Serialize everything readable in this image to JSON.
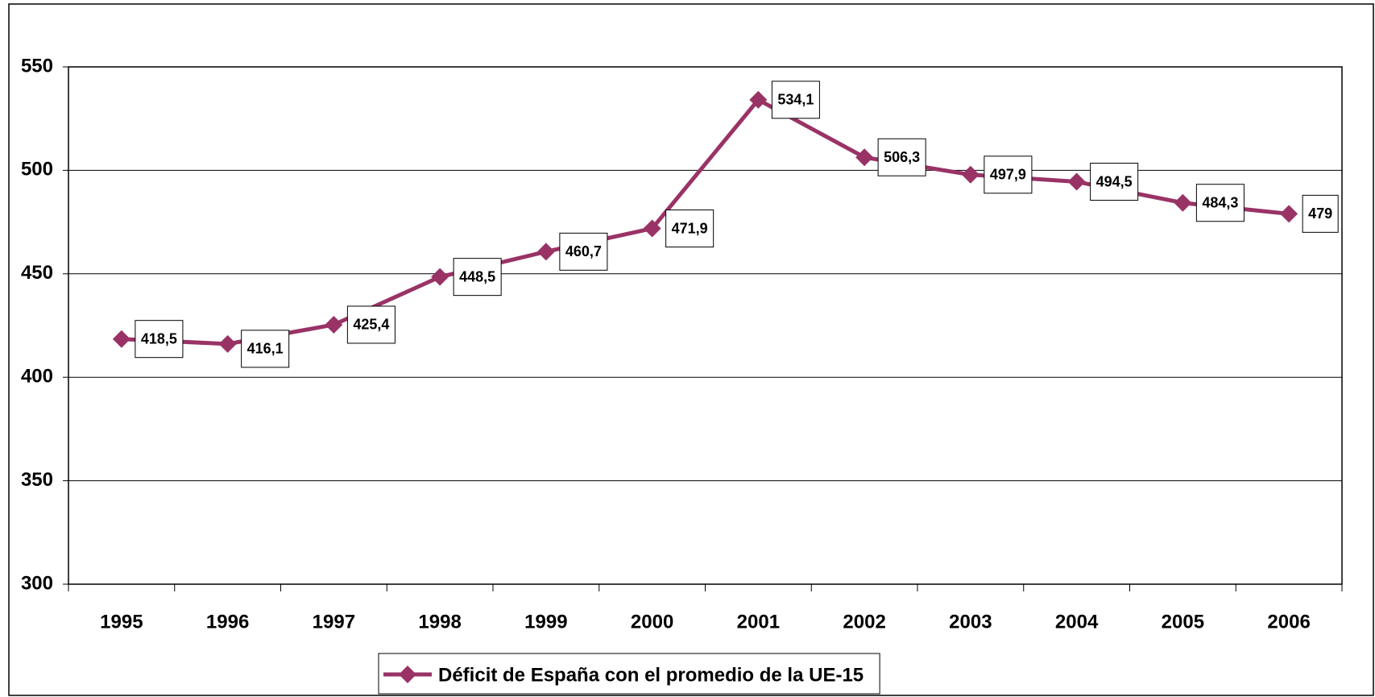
{
  "chart_data": {
    "type": "line",
    "categories": [
      "1995",
      "1996",
      "1997",
      "1998",
      "1999",
      "2000",
      "2001",
      "2002",
      "2003",
      "2004",
      "2005",
      "2006"
    ],
    "series": [
      {
        "name": "Déficit de España con el promedio de la UE-15",
        "color": "#993366",
        "values": [
          418.5,
          416.1,
          425.4,
          448.5,
          460.7,
          471.9,
          534.1,
          506.3,
          497.9,
          494.5,
          484.3,
          479
        ],
        "value_labels": [
          "418,5",
          "416,1",
          "425,4",
          "448,5",
          "460,7",
          "471,9",
          "534,1",
          "506,3",
          "497,9",
          "494,5",
          "484,3",
          "479"
        ]
      }
    ],
    "ylim": [
      300,
      550
    ],
    "yticks": [
      300,
      350,
      400,
      450,
      500,
      550
    ],
    "grid": true,
    "legend": "bottom"
  }
}
